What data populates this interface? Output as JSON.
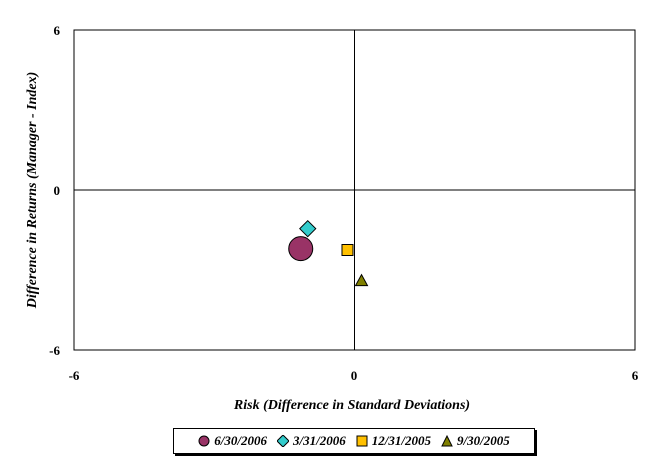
{
  "chart_data": {
    "type": "scatter",
    "title": "",
    "xlabel": "Risk (Difference in Standard Deviations)",
    "ylabel": "Difference in Returns (Manager - Index)",
    "xlim": [
      -6,
      6
    ],
    "ylim": [
      -6,
      6
    ],
    "x_ticks": [
      "-6",
      "0",
      "6"
    ],
    "y_ticks": [
      "6",
      "0",
      "-6"
    ],
    "grid": false,
    "legend_position": "bottom",
    "series": [
      {
        "name": "6/30/2006",
        "marker": "circle",
        "color": "#993366",
        "x": -1.15,
        "y": -2.2,
        "size": "large"
      },
      {
        "name": "3/31/2006",
        "marker": "diamond",
        "color": "#33cccc",
        "x": -1.0,
        "y": -1.45,
        "size": "normal"
      },
      {
        "name": "12/31/2005",
        "marker": "square",
        "color": "#ffc000",
        "x": -0.15,
        "y": -2.25,
        "size": "normal"
      },
      {
        "name": "9/30/2005",
        "marker": "triangle",
        "color": "#808000",
        "x": 0.15,
        "y": -3.4,
        "size": "normal"
      }
    ]
  }
}
